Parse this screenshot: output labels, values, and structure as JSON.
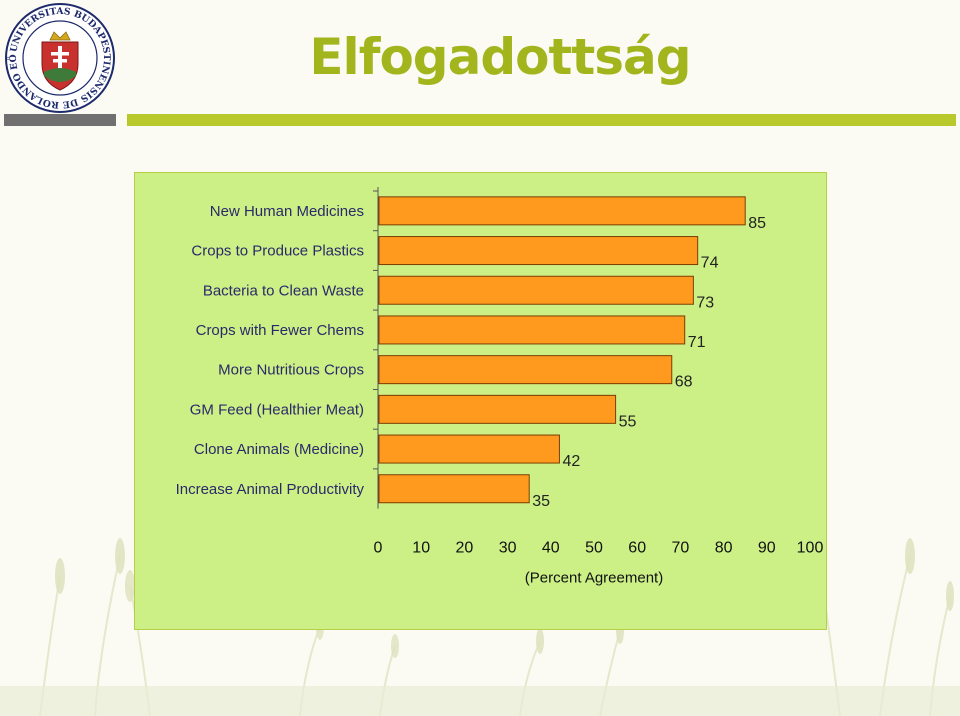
{
  "slide": {
    "title": "Elfogadottság",
    "accent_color": "#a3b51c",
    "seal": {
      "text": "UNIVERSITAS BUDAPESTINENSIS DE ROLANDO EÖTVÖS NOMINATA"
    }
  },
  "chart_data": {
    "type": "bar",
    "orientation": "horizontal",
    "categories": [
      "New Human Medicines",
      "Crops to Produce Plastics",
      "Bacteria to Clean Waste",
      "Crops with Fewer Chems",
      "More Nutritious Crops",
      "GM Feed (Healthier Meat)",
      "Clone Animals (Medicine)",
      "Increase Animal Productivity"
    ],
    "values": [
      85,
      74,
      73,
      71,
      68,
      55,
      42,
      35
    ],
    "xlabel": "(Percent Agreement)",
    "xlim": [
      0,
      100
    ],
    "xticks": [
      0,
      10,
      20,
      30,
      40,
      50,
      60,
      70,
      80,
      90,
      100
    ],
    "grid": false,
    "legend": "none",
    "bar_color": "#ff9a1f",
    "bar_edge_color": "#7a3d00",
    "background_color": "#ccf086"
  }
}
